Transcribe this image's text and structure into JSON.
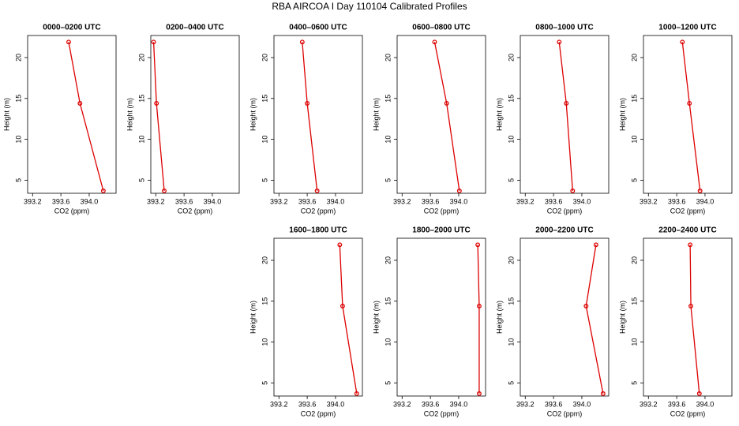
{
  "title": "RBA AIRCOA I  Day 110104  Calibrated Profiles",
  "chart_data": [
    {
      "type": "line",
      "title": "0000–0200 UTC",
      "xlabel": "CO2 (ppm)",
      "ylabel": "Height (m)",
      "color": "#dd0000",
      "x": [
        393.71,
        393.87,
        394.2
      ],
      "values": [
        21.9,
        14.4,
        3.7
      ],
      "xlim": [
        393.13,
        394.38
      ],
      "ylim": [
        3.4,
        22.7
      ],
      "xticks": [
        393.2,
        393.6,
        {
          "value": 394,
          "label": "394.0"
        }
      ],
      "yticks": [
        5,
        10,
        15,
        20
      ]
    },
    {
      "type": "line",
      "title": "0200–0400 UTC",
      "xlabel": "CO2 (ppm)",
      "ylabel": "Height (m)",
      "color": "#dd0000",
      "x": [
        393.17,
        393.21,
        393.32
      ],
      "values": [
        21.9,
        14.4,
        3.7
      ],
      "xlim": [
        393.13,
        394.38
      ],
      "ylim": [
        3.4,
        22.7
      ],
      "xticks": [
        393.2,
        393.6,
        {
          "value": 394,
          "label": "394.0"
        }
      ],
      "yticks": [
        5,
        10,
        15,
        20
      ]
    },
    {
      "type": "line",
      "title": "0400–0600 UTC",
      "xlabel": "CO2 (ppm)",
      "ylabel": "Height (m)",
      "color": "#dd0000",
      "x": [
        393.53,
        393.6,
        393.74
      ],
      "values": [
        21.9,
        14.4,
        3.7
      ],
      "xlim": [
        393.13,
        394.38
      ],
      "ylim": [
        3.4,
        22.7
      ],
      "xticks": [
        393.2,
        393.6,
        {
          "value": 394,
          "label": "394.0"
        }
      ],
      "yticks": [
        5,
        10,
        15,
        20
      ]
    },
    {
      "type": "line",
      "title": "0600–0800 UTC",
      "xlabel": "CO2 (ppm)",
      "ylabel": "Height (m)",
      "color": "#dd0000",
      "x": [
        393.66,
        393.83,
        394.01
      ],
      "values": [
        21.9,
        14.4,
        3.7
      ],
      "xlim": [
        393.13,
        394.38
      ],
      "ylim": [
        3.4,
        22.7
      ],
      "xticks": [
        393.2,
        393.6,
        {
          "value": 394,
          "label": "394.0"
        }
      ],
      "yticks": [
        5,
        10,
        15,
        20
      ]
    },
    {
      "type": "line",
      "title": "0800–1000 UTC",
      "xlabel": "CO2 (ppm)",
      "ylabel": "Height (m)",
      "color": "#dd0000",
      "x": [
        393.68,
        393.78,
        393.87
      ],
      "values": [
        21.9,
        14.4,
        3.7
      ],
      "xlim": [
        393.13,
        394.38
      ],
      "ylim": [
        3.4,
        22.7
      ],
      "xticks": [
        393.2,
        393.6,
        {
          "value": 394,
          "label": "394.0"
        }
      ],
      "yticks": [
        5,
        10,
        15,
        20
      ]
    },
    {
      "type": "line",
      "title": "1000–1200 UTC",
      "xlabel": "CO2 (ppm)",
      "ylabel": "Height (m)",
      "color": "#dd0000",
      "x": [
        393.68,
        393.78,
        393.93
      ],
      "values": [
        21.9,
        14.4,
        3.7
      ],
      "xlim": [
        393.13,
        394.38
      ],
      "ylim": [
        3.4,
        22.7
      ],
      "xticks": [
        393.2,
        393.6,
        {
          "value": 394,
          "label": "394.0"
        }
      ],
      "yticks": [
        5,
        10,
        15,
        20
      ]
    },
    {
      "type": "line",
      "title": "1600–1800 UTC",
      "xlabel": "CO2 (ppm)",
      "ylabel": "Height (m)",
      "color": "#dd0000",
      "x": [
        394.06,
        394.1,
        394.3
      ],
      "values": [
        21.9,
        14.4,
        3.7
      ],
      "xlim": [
        393.13,
        394.38
      ],
      "ylim": [
        3.4,
        22.7
      ],
      "xticks": [
        393.2,
        393.6,
        {
          "value": 394,
          "label": "394.0"
        }
      ],
      "yticks": [
        5,
        10,
        15,
        20
      ]
    },
    {
      "type": "line",
      "title": "1800–2000 UTC",
      "xlabel": "CO2 (ppm)",
      "ylabel": "Height (m)",
      "color": "#dd0000",
      "x": [
        394.27,
        394.29,
        394.29
      ],
      "values": [
        21.9,
        14.4,
        3.7
      ],
      "xlim": [
        393.13,
        394.38
      ],
      "ylim": [
        3.4,
        22.7
      ],
      "xticks": [
        393.2,
        393.6,
        {
          "value": 394,
          "label": "394.0"
        }
      ],
      "yticks": [
        5,
        10,
        15,
        20
      ]
    },
    {
      "type": "line",
      "title": "2000–2200 UTC",
      "xlabel": "CO2 (ppm)",
      "ylabel": "Height (m)",
      "color": "#dd0000",
      "x": [
        394.2,
        394.06,
        394.3
      ],
      "values": [
        21.9,
        14.4,
        3.7
      ],
      "xlim": [
        393.13,
        394.38
      ],
      "ylim": [
        3.4,
        22.7
      ],
      "xticks": [
        393.2,
        393.6,
        {
          "value": 394,
          "label": "394.0"
        }
      ],
      "yticks": [
        5,
        10,
        15,
        20
      ]
    },
    {
      "type": "line",
      "title": "2200–2400 UTC",
      "xlabel": "CO2 (ppm)",
      "ylabel": "Height (m)",
      "color": "#dd0000",
      "x": [
        393.79,
        393.8,
        393.92
      ],
      "values": [
        21.9,
        14.4,
        3.7
      ],
      "xlim": [
        393.13,
        394.38
      ],
      "ylim": [
        3.4,
        22.7
      ],
      "xticks": [
        393.2,
        393.6,
        {
          "value": 394,
          "label": "394.0"
        }
      ],
      "yticks": [
        5,
        10,
        15,
        20
      ]
    }
  ]
}
